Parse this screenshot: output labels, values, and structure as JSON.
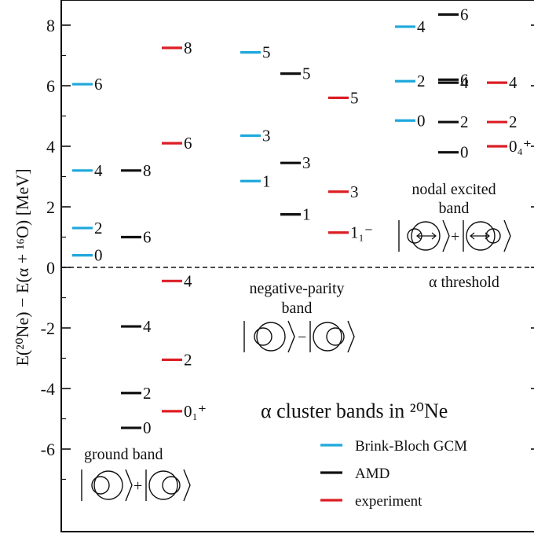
{
  "chart_data": {
    "type": "level-scheme",
    "title": "α cluster bands in ²⁰Ne",
    "ylabel": "E(²⁰Ne) − E(α + ¹⁶O) [MeV]",
    "ylim": [
      -8.7,
      8.7
    ],
    "yticks": [
      -6,
      -4,
      -2,
      0,
      2,
      4,
      6,
      8
    ],
    "threshold": {
      "value": 0,
      "label": "α threshold"
    },
    "series": [
      {
        "name": "Brink-Bloch GCM",
        "color": "#1ea8dc"
      },
      {
        "name": "AMD",
        "color": "#111111"
      },
      {
        "name": "experiment",
        "color": "#dc1e24"
      }
    ],
    "bands": [
      {
        "name": "ground band",
        "diagram": "|⊙⟩ + |⊙⟩",
        "levels": [
          {
            "series": "Brink-Bloch GCM",
            "energy": 0.4,
            "label": "0"
          },
          {
            "series": "Brink-Bloch GCM",
            "energy": 1.3,
            "label": "2"
          },
          {
            "series": "Brink-Bloch GCM",
            "energy": 3.2,
            "label": "4"
          },
          {
            "series": "Brink-Bloch GCM",
            "energy": 6.05,
            "label": "6"
          },
          {
            "series": "AMD",
            "energy": -5.3,
            "label": "0"
          },
          {
            "series": "AMD",
            "energy": -4.15,
            "label": "2"
          },
          {
            "series": "AMD",
            "energy": -1.95,
            "label": "4"
          },
          {
            "series": "AMD",
            "energy": 1.0,
            "label": "6"
          },
          {
            "series": "AMD",
            "energy": 3.2,
            "label": "8"
          },
          {
            "series": "experiment",
            "energy": -4.75,
            "label": "0₁⁺"
          },
          {
            "series": "experiment",
            "energy": -3.05,
            "label": "2"
          },
          {
            "series": "experiment",
            "energy": -0.45,
            "label": "4"
          },
          {
            "series": "experiment",
            "energy": 4.1,
            "label": "6"
          },
          {
            "series": "experiment",
            "energy": 7.25,
            "label": "8"
          }
        ]
      },
      {
        "name": "negative-parity band",
        "diagram": "|⊙⟩ − |⊙⟩",
        "levels": [
          {
            "series": "Brink-Bloch GCM",
            "energy": 2.85,
            "label": "1"
          },
          {
            "series": "Brink-Bloch GCM",
            "energy": 4.35,
            "label": "3"
          },
          {
            "series": "Brink-Bloch GCM",
            "energy": 7.1,
            "label": "5"
          },
          {
            "series": "AMD",
            "energy": 1.75,
            "label": "1"
          },
          {
            "series": "AMD",
            "energy": 3.45,
            "label": "3"
          },
          {
            "series": "AMD",
            "energy": 6.4,
            "label": "5"
          },
          {
            "series": "experiment",
            "energy": 1.15,
            "label": "1₁⁻"
          },
          {
            "series": "experiment",
            "energy": 2.5,
            "label": "3"
          },
          {
            "series": "experiment",
            "energy": 5.6,
            "label": "5"
          }
        ]
      },
      {
        "name": "nodal excited band",
        "diagram": "|⊙⟩ + |⊙⟩",
        "levels": [
          {
            "series": "Brink-Bloch GCM",
            "energy": 4.85,
            "label": "0"
          },
          {
            "series": "Brink-Bloch GCM",
            "energy": 6.15,
            "label": "2"
          },
          {
            "series": "Brink-Bloch GCM",
            "energy": 7.95,
            "label": "4"
          },
          {
            "series": "AMD",
            "energy": 3.8,
            "label": "0"
          },
          {
            "series": "AMD",
            "energy": 4.8,
            "label": "2"
          },
          {
            "series": "AMD",
            "energy": 6.1,
            "label": "4"
          },
          {
            "series": "AMD",
            "energy": 6.2,
            "label": "6"
          },
          {
            "series": "AMD",
            "energy": 8.35,
            "label": "6"
          },
          {
            "series": "experiment",
            "energy": 4.0,
            "label": "0₄⁺"
          },
          {
            "series": "experiment",
            "energy": 4.8,
            "label": "2"
          },
          {
            "series": "experiment",
            "energy": 6.1,
            "label": "4"
          }
        ]
      }
    ]
  }
}
